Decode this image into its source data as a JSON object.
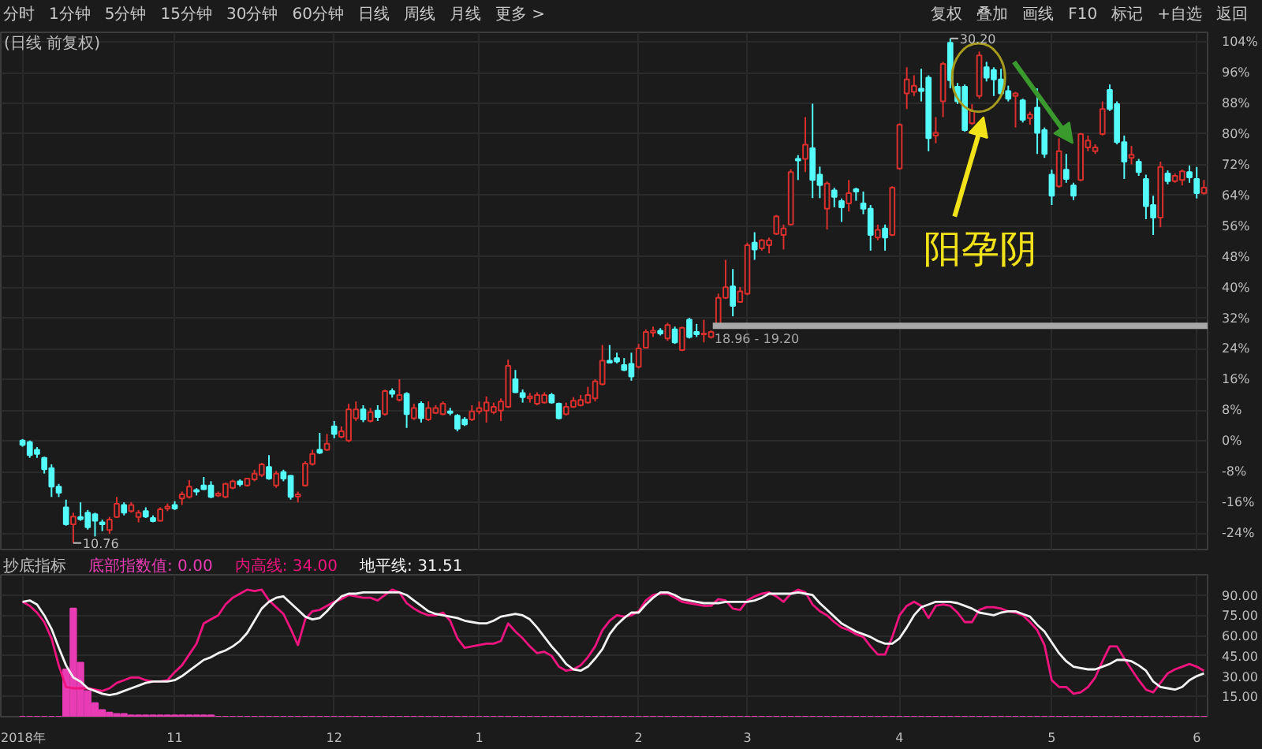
{
  "chart_data": [
    {
      "type": "candlestick",
      "title": "(日线 前复权)",
      "categories": [
        null,
        null,
        null,
        null,
        null,
        null,
        null,
        null,
        null,
        null,
        null,
        null,
        null,
        null,
        null,
        null,
        null,
        null,
        null,
        null,
        null,
        null,
        null,
        null,
        null,
        null,
        null,
        null,
        null,
        null,
        null,
        null,
        null,
        null,
        null,
        null,
        null,
        null,
        null,
        null,
        null,
        null,
        null,
        null,
        null,
        null,
        null,
        null,
        null,
        null,
        null,
        null,
        null,
        null,
        null,
        null,
        null,
        null,
        null,
        null,
        null,
        null,
        null,
        null,
        null,
        null,
        null,
        null,
        null,
        null,
        null,
        null,
        null,
        null,
        null,
        null,
        null,
        null,
        null,
        null,
        null,
        null,
        null,
        null,
        null,
        null,
        null,
        null,
        null,
        null,
        null,
        null,
        null,
        null,
        null,
        null,
        null,
        null,
        null,
        null,
        null,
        null,
        null,
        null,
        null,
        null,
        null,
        null,
        null,
        null,
        null,
        null,
        null,
        null,
        null,
        null,
        null,
        null,
        null,
        null,
        null,
        null,
        null,
        null,
        null,
        null,
        null,
        null,
        null,
        null,
        null,
        null,
        null,
        null,
        null,
        null,
        null,
        null,
        null,
        null,
        null,
        null,
        null,
        null,
        null,
        null,
        null,
        null,
        null,
        null,
        null,
        null,
        null,
        null,
        null,
        null,
        null,
        null,
        null,
        null,
        null,
        null,
        null,
        null
      ],
      "ohlc": [
        [
          0.1,
          0.5,
          -1.5,
          -1.0
        ],
        [
          -0.3,
          0.1,
          -4.4,
          -3.7
        ],
        [
          -2.3,
          -1.6,
          -4.4,
          -3.4
        ],
        [
          -4.4,
          -4.1,
          -8.5,
          -7.4
        ],
        [
          -7.1,
          -6.1,
          -14.6,
          -11.9
        ],
        [
          -11.9,
          -11.2,
          -14.6,
          -13.5
        ],
        [
          -17.3,
          -15.3,
          -22.1,
          -21.7
        ],
        [
          -21.7,
          -18.7,
          -26.6,
          -19.7
        ],
        [
          -19.8,
          -16.0,
          -20.8,
          -20.4
        ],
        [
          -18.7,
          -18.0,
          -23.1,
          -22.5
        ],
        [
          -19.1,
          -18.7,
          -24.9,
          -20.8
        ],
        [
          -21.2,
          -20.5,
          -23.5,
          -21.7
        ],
        [
          -23.2,
          -19.8,
          -24.2,
          -20.5
        ],
        [
          -19.8,
          -14.6,
          -20.1,
          -16.4
        ],
        [
          -16.7,
          -16.0,
          -19.4,
          -18.7
        ],
        [
          -18.3,
          -16.0,
          -18.7,
          -16.7
        ],
        [
          -19.8,
          -18.0,
          -21.2,
          -18.7
        ],
        [
          -18.3,
          -17.3,
          -20.1,
          -19.7
        ],
        [
          -20.1,
          -19.4,
          -21.2,
          -20.9
        ],
        [
          -20.8,
          -17.3,
          -21.0,
          -17.8
        ],
        [
          -17.6,
          -16.3,
          -18.3,
          -17.1
        ],
        [
          -16.7,
          -15.7,
          -18.0,
          -17.6
        ],
        [
          -15.0,
          -13.2,
          -16.7,
          -13.9
        ],
        [
          -14.6,
          -10.2,
          -15.0,
          -11.9
        ],
        [
          -12.8,
          -12.3,
          -14.2,
          -13.2
        ],
        [
          -11.6,
          -9.4,
          -12.8,
          -12.6
        ],
        [
          -11.6,
          -10.5,
          -14.9,
          -14.6
        ],
        [
          -14.2,
          -13.2,
          -14.6,
          -13.7
        ],
        [
          -14.6,
          -10.9,
          -14.9,
          -11.2
        ],
        [
          -12.2,
          -10.1,
          -12.6,
          -10.5
        ],
        [
          -10.5,
          -10.0,
          -11.9,
          -11.3
        ],
        [
          -11.6,
          -9.6,
          -11.9,
          -9.8
        ],
        [
          -10.0,
          -7.5,
          -10.5,
          -8.5
        ],
        [
          -8.9,
          -5.7,
          -9.4,
          -6.1
        ],
        [
          -6.8,
          -3.7,
          -10.1,
          -9.8
        ],
        [
          -11.6,
          -7.8,
          -12.2,
          -8.5
        ],
        [
          -8.1,
          -7.5,
          -10.5,
          -9.8
        ],
        [
          -9.1,
          -8.9,
          -15.3,
          -14.6
        ],
        [
          -14.5,
          -13.2,
          -16.0,
          -13.9
        ],
        [
          -11.6,
          -5.3,
          -11.9,
          -5.9
        ],
        [
          -6.0,
          -2.3,
          -6.4,
          -3.4
        ],
        [
          -2.3,
          2.1,
          -3.4,
          -3.1
        ],
        [
          -2.3,
          1.8,
          -2.6,
          -0.7
        ],
        [
          3.8,
          5.2,
          0.7,
          1.8
        ],
        [
          1.1,
          3.8,
          0.7,
          2.5
        ],
        [
          0.1,
          9.7,
          -0.3,
          8.2
        ],
        [
          5.9,
          10.3,
          5.2,
          8.2
        ],
        [
          8.2,
          9.3,
          4.9,
          5.6
        ],
        [
          5.2,
          8.6,
          4.8,
          7.5
        ],
        [
          7.9,
          9.3,
          5.2,
          6.2
        ],
        [
          7.0,
          13.4,
          6.6,
          13.0
        ],
        [
          13.0,
          13.7,
          11.3,
          12.3
        ],
        [
          10.7,
          16.1,
          10.3,
          12.0
        ],
        [
          12.3,
          12.7,
          3.4,
          7.0
        ],
        [
          5.9,
          9.7,
          5.5,
          8.6
        ],
        [
          9.7,
          10.3,
          4.8,
          5.9
        ],
        [
          5.6,
          10.3,
          5.2,
          8.6
        ],
        [
          7.3,
          9.3,
          7.0,
          8.6
        ],
        [
          7.0,
          10.3,
          6.7,
          9.7
        ],
        [
          7.7,
          8.6,
          6.7,
          7.3
        ],
        [
          6.6,
          7.0,
          2.5,
          3.2
        ],
        [
          5.6,
          6.2,
          3.9,
          4.3
        ],
        [
          5.6,
          9.3,
          5.2,
          7.7
        ],
        [
          7.7,
          10.3,
          7.0,
          8.6
        ],
        [
          7.9,
          11.6,
          4.8,
          10.0
        ],
        [
          7.5,
          10.0,
          7.0,
          8.9
        ],
        [
          7.9,
          11.1,
          5.2,
          10.3
        ],
        [
          8.9,
          21.2,
          8.6,
          19.6
        ],
        [
          16.1,
          18.5,
          12.5,
          12.7
        ],
        [
          12.5,
          13.4,
          10.0,
          11.4
        ],
        [
          11.1,
          12.5,
          10.0,
          11.6
        ],
        [
          9.7,
          12.7,
          9.3,
          12.0
        ],
        [
          10.0,
          12.7,
          9.7,
          12.0
        ],
        [
          12.0,
          12.5,
          9.7,
          10.0
        ],
        [
          9.7,
          10.0,
          5.6,
          5.9
        ],
        [
          7.0,
          10.0,
          6.6,
          8.9
        ],
        [
          8.9,
          11.4,
          8.6,
          10.5
        ],
        [
          9.3,
          12.0,
          9.0,
          10.7
        ],
        [
          10.0,
          14.1,
          9.7,
          12.0
        ],
        [
          11.1,
          16.1,
          10.3,
          15.5
        ],
        [
          14.8,
          25.0,
          14.5,
          20.9
        ],
        [
          20.9,
          25.0,
          20.2,
          20.4
        ],
        [
          21.6,
          23.0,
          20.2,
          20.7
        ],
        [
          19.8,
          21.6,
          18.2,
          18.5
        ],
        [
          20.1,
          23.0,
          15.7,
          16.8
        ],
        [
          19.3,
          25.3,
          18.9,
          24.1
        ],
        [
          24.3,
          29.1,
          24.1,
          28.4
        ],
        [
          28.2,
          29.8,
          27.1,
          28.7
        ],
        [
          28.7,
          29.4,
          27.5,
          28.0
        ],
        [
          26.7,
          30.8,
          26.1,
          30.2
        ],
        [
          29.1,
          29.8,
          25.3,
          25.7
        ],
        [
          23.7,
          29.8,
          23.4,
          29.5
        ],
        [
          31.6,
          32.1,
          26.7,
          27.1
        ],
        [
          28.4,
          30.5,
          27.1,
          27.8
        ],
        [
          27.8,
          31.6,
          25.7,
          28.0
        ],
        [
          27.1,
          28.8,
          26.7,
          28.4
        ],
        [
          30.5,
          38.4,
          30.2,
          37.3
        ],
        [
          37.3,
          47.2,
          37.0,
          40.1
        ],
        [
          40.3,
          44.8,
          32.5,
          35.2
        ],
        [
          36.2,
          40.1,
          36.0,
          39.0
        ],
        [
          38.4,
          51.7,
          38.0,
          51.0
        ],
        [
          51.7,
          54.4,
          47.2,
          49.9
        ],
        [
          50.2,
          52.6,
          49.6,
          52.3
        ],
        [
          51.0,
          53.0,
          48.9,
          52.3
        ],
        [
          54.0,
          58.9,
          53.7,
          58.5
        ],
        [
          53.7,
          56.4,
          49.9,
          55.4
        ],
        [
          56.4,
          70.8,
          56.2,
          70.1
        ],
        [
          73.5,
          74.5,
          68.0,
          73.1
        ],
        [
          73.5,
          84.4,
          70.1,
          77.2
        ],
        [
          76.3,
          87.9,
          63.3,
          68.0
        ],
        [
          69.4,
          71.5,
          63.3,
          66.7
        ],
        [
          60.5,
          67.6,
          55.1,
          67.1
        ],
        [
          65.3,
          66.0,
          60.9,
          63.6
        ],
        [
          62.5,
          63.2,
          57.1,
          60.9
        ],
        [
          61.9,
          68.0,
          59.8,
          64.6
        ],
        [
          65.6,
          66.0,
          62.6,
          65.0
        ],
        [
          61.9,
          65.0,
          59.1,
          60.5
        ],
        [
          60.5,
          61.5,
          49.6,
          53.7
        ],
        [
          53.0,
          56.4,
          52.3,
          55.0
        ],
        [
          55.4,
          56.4,
          49.6,
          53.0
        ],
        [
          53.7,
          66.4,
          53.4,
          66.0
        ],
        [
          71.0,
          82.8,
          70.7,
          82.4
        ],
        [
          90.6,
          97.4,
          86.5,
          94.2
        ],
        [
          91.0,
          95.3,
          89.9,
          92.6
        ],
        [
          91.8,
          97.0,
          88.5,
          91.2
        ],
        [
          94.7,
          95.3,
          75.5,
          78.9
        ],
        [
          79.6,
          84.4,
          77.6,
          80.3
        ],
        [
          88.5,
          98.8,
          84.4,
          98.3
        ],
        [
          103.8,
          104.9,
          91.9,
          94.0
        ],
        [
          92.3,
          93.3,
          87.8,
          88.5
        ],
        [
          92.3,
          92.9,
          80.6,
          81.0
        ],
        [
          82.8,
          87.8,
          82.4,
          86.0
        ],
        [
          89.9,
          101.5,
          89.2,
          100.5
        ],
        [
          97.4,
          98.8,
          93.7,
          94.7
        ],
        [
          96.7,
          97.4,
          89.9,
          94.2
        ],
        [
          94.2,
          97.0,
          89.9,
          90.6
        ],
        [
          91.2,
          92.6,
          88.5,
          89.2
        ],
        [
          89.9,
          91.0,
          81.7,
          90.6
        ],
        [
          88.8,
          89.2,
          83.0,
          83.7
        ],
        [
          84.1,
          85.8,
          82.4,
          85.1
        ],
        [
          86.9,
          91.9,
          74.8,
          80.3
        ],
        [
          81.0,
          81.7,
          73.8,
          74.8
        ],
        [
          69.4,
          70.7,
          61.5,
          63.9
        ],
        [
          66.4,
          78.9,
          66.0,
          75.5
        ],
        [
          70.7,
          74.8,
          67.3,
          68.3
        ],
        [
          66.6,
          67.3,
          62.8,
          63.9
        ],
        [
          68.0,
          80.3,
          67.7,
          80.0
        ],
        [
          76.5,
          79.6,
          75.5,
          78.3
        ],
        [
          75.5,
          77.3,
          74.8,
          76.5
        ],
        [
          80.0,
          88.5,
          79.6,
          86.5
        ],
        [
          91.5,
          92.9,
          86.0,
          86.5
        ],
        [
          87.8,
          88.5,
          77.3,
          77.9
        ],
        [
          77.9,
          79.6,
          68.3,
          72.8
        ],
        [
          73.8,
          76.9,
          72.1,
          74.6
        ],
        [
          72.8,
          73.5,
          69.1,
          70.1
        ],
        [
          68.3,
          69.4,
          57.8,
          61.2
        ],
        [
          61.5,
          63.9,
          53.7,
          58.2
        ],
        [
          58.2,
          72.8,
          55.7,
          71.4
        ],
        [
          69.7,
          70.5,
          66.9,
          67.7
        ],
        [
          67.7,
          69.7,
          67.3,
          69.1
        ],
        [
          68.0,
          70.7,
          66.6,
          70.3
        ],
        [
          70.1,
          71.8,
          67.3,
          68.7
        ],
        [
          68.3,
          71.4,
          63.2,
          64.6
        ],
        [
          64.6,
          68.0,
          64.2,
          66.0
        ]
      ],
      "colors": [
        "#54fcfc",
        "#54fcfc",
        "#54fcfc",
        "#54fcfc",
        "#54fcfc",
        "#54fcfc",
        "#54fcfc",
        "#d9302e",
        "#54fcfc",
        "#54fcfc",
        "#54fcfc",
        "#54fcfc",
        "#d9302e",
        "#d9302e",
        "#54fcfc",
        "#d9302e",
        "#d9302e",
        "#54fcfc",
        "#54fcfc",
        "#d9302e",
        "#d9302e",
        "#54fcfc",
        "#d9302e",
        "#d9302e",
        "#54fcfc",
        "#54fcfc",
        "#54fcfc",
        "#d9302e",
        "#d9302e",
        "#d9302e",
        "#54fcfc",
        "#d9302e",
        "#d9302e",
        "#d9302e",
        "#54fcfc",
        "#d9302e",
        "#54fcfc",
        "#54fcfc",
        "#d9302e",
        "#d9302e",
        "#d9302e",
        "#54fcfc",
        "#d9302e",
        "#54fcfc",
        "#d9302e",
        "#d9302e",
        "#d9302e",
        "#54fcfc",
        "#d9302e",
        "#54fcfc",
        "#d9302e",
        "#54fcfc",
        "#d9302e",
        "#54fcfc",
        "#d9302e",
        "#54fcfc",
        "#d9302e",
        "#d9302e",
        "#d9302e",
        "#54fcfc",
        "#54fcfc",
        "#54fcfc",
        "#d9302e",
        "#d9302e",
        "#d9302e",
        "#d9302e",
        "#d9302e",
        "#d9302e",
        "#54fcfc",
        "#54fcfc",
        "#d9302e",
        "#d9302e",
        "#d9302e",
        "#54fcfc",
        "#54fcfc",
        "#d9302e",
        "#d9302e",
        "#d9302e",
        "#d9302e",
        "#d9302e",
        "#d9302e",
        "#54fcfc",
        "#54fcfc",
        "#54fcfc",
        "#54fcfc",
        "#d9302e",
        "#d9302e",
        "#d9302e",
        "#54fcfc",
        "#d9302e",
        "#54fcfc",
        "#d9302e",
        "#54fcfc",
        "#54fcfc",
        "#d9302e",
        "#d9302e",
        "#d9302e",
        "#d9302e",
        "#54fcfc",
        "#d9302e",
        "#d9302e",
        "#54fcfc",
        "#d9302e",
        "#d9302e",
        "#d9302e",
        "#d9302e",
        "#d9302e",
        "#54fcfc",
        "#d9302e",
        "#54fcfc",
        "#54fcfc",
        "#d9302e",
        "#54fcfc",
        "#54fcfc",
        "#d9302e",
        "#54fcfc",
        "#54fcfc",
        "#54fcfc",
        "#d9302e",
        "#54fcfc",
        "#d9302e",
        "#d9302e",
        "#d9302e",
        "#d9302e",
        "#54fcfc",
        "#54fcfc",
        "#d9302e",
        "#d9302e",
        "#54fcfc",
        "#54fcfc",
        "#54fcfc",
        "#d9302e",
        "#d9302e",
        "#54fcfc",
        "#54fcfc",
        "#54fcfc",
        "#54fcfc",
        "#d9302e",
        "#54fcfc",
        "#d9302e",
        "#54fcfc",
        "#54fcfc",
        "#54fcfc",
        "#d9302e",
        "#54fcfc",
        "#54fcfc",
        "#d9302e",
        "#d9302e",
        "#d9302e",
        "#d9302e",
        "#54fcfc",
        "#54fcfc",
        "#54fcfc",
        "#d9302e",
        "#54fcfc",
        "#54fcfc",
        "#54fcfc",
        "#d9302e",
        "#54fcfc",
        "#d9302e",
        "#d9302e",
        "#54fcfc",
        "#54fcfc",
        "#d9302e"
      ],
      "ylim": [
        -28.3,
        106.5
      ],
      "yticks": [
        {
          "value": 104,
          "label": "104%"
        },
        {
          "value": 96,
          "label": "96%"
        },
        {
          "value": 88,
          "label": "88%"
        },
        {
          "value": 80,
          "label": "80%"
        },
        {
          "value": 72,
          "label": "72%"
        },
        {
          "value": 64,
          "label": "64%"
        },
        {
          "value": 56,
          "label": "56%"
        },
        {
          "value": 48,
          "label": "48%"
        },
        {
          "value": 40,
          "label": "40%"
        },
        {
          "value": 32,
          "label": "32%"
        },
        {
          "value": 24,
          "label": "24%"
        },
        {
          "value": 16,
          "label": "16%"
        },
        {
          "value": 8,
          "label": "8%"
        },
        {
          "value": 0,
          "label": "0%"
        },
        {
          "value": -8,
          "label": "-8%"
        },
        {
          "value": -16,
          "label": "-16%"
        },
        {
          "value": -24,
          "label": "-24%"
        }
      ],
      "grid": true,
      "tick_labels": "y",
      "ref_lines": [
        {
          "axis": "y",
          "value": 30.0,
          "color": "#a8a8a8"
        }
      ],
      "annotations": [
        "阳孕阴",
        "30.20",
        "10.76",
        "18.96 - 19.20",
        "分时",
        "1分钟",
        "5分钟",
        "15分钟",
        "30分钟",
        "60分钟",
        "日线",
        "周线",
        "月线",
        "更多 >",
        "复权",
        "叠加",
        "画线",
        "F10",
        "标记",
        "+自选",
        "返回"
      ]
    },
    {
      "type": "line",
      "title": "抄底指标",
      "categories": [
        "2018年",
        null,
        null,
        null,
        null,
        null,
        null,
        null,
        null,
        null,
        null,
        null,
        null,
        null,
        null,
        null,
        null,
        null,
        null,
        null,
        null,
        "11",
        null,
        null,
        null,
        null,
        null,
        null,
        null,
        null,
        null,
        null,
        null,
        null,
        null,
        null,
        null,
        null,
        null,
        null,
        null,
        null,
        null,
        "12",
        null,
        null,
        null,
        null,
        null,
        null,
        null,
        null,
        null,
        null,
        null,
        null,
        null,
        null,
        null,
        null,
        null,
        null,
        null,
        "1",
        null,
        null,
        null,
        null,
        null,
        null,
        null,
        null,
        null,
        null,
        null,
        null,
        null,
        null,
        null,
        null,
        null,
        null,
        null,
        null,
        null,
        "2",
        null,
        null,
        null,
        null,
        null,
        null,
        null,
        null,
        null,
        null,
        null,
        null,
        null,
        null,
        "3",
        null,
        null,
        null,
        null,
        null,
        null,
        null,
        null,
        null,
        null,
        null,
        null,
        null,
        null,
        null,
        null,
        null,
        null,
        null,
        null,
        "4",
        null,
        null,
        null,
        null,
        null,
        null,
        null,
        null,
        null,
        null,
        null,
        null,
        null,
        null,
        null,
        null,
        null,
        null,
        null,
        null,
        "5",
        null,
        null,
        null,
        null,
        null,
        null,
        null,
        null,
        null,
        null,
        null,
        null,
        null,
        null,
        null,
        null,
        null,
        null,
        null,
        "6",
        null
      ],
      "series": [
        {
          "name": "底部指数值: 0.00",
          "type": "bar",
          "color": "#e83cb4",
          "values": [
            0,
            0,
            0,
            0,
            0,
            0,
            35,
            80,
            40,
            19,
            10,
            5,
            3,
            2,
            2,
            1,
            1,
            1,
            1,
            1,
            1,
            1,
            1,
            1,
            1,
            1,
            1,
            0,
            0,
            0,
            0,
            0,
            0,
            0,
            0,
            0,
            0,
            0,
            0,
            0,
            0,
            0,
            0,
            0,
            0,
            0,
            0,
            0,
            0,
            0,
            0,
            0,
            0,
            0,
            0,
            0,
            0,
            0,
            0,
            0,
            0,
            0,
            0,
            0,
            0,
            0,
            0,
            0,
            0,
            0,
            0,
            0,
            0,
            0,
            0,
            0,
            0,
            0,
            0,
            0,
            0,
            0,
            0,
            0,
            0,
            0,
            0,
            0,
            0,
            0,
            0,
            0,
            0,
            0,
            0,
            0,
            0,
            0,
            0,
            0,
            0,
            0,
            0,
            0,
            0,
            0,
            0,
            0,
            0,
            0,
            0,
            0,
            0,
            0,
            0,
            0,
            0,
            0,
            0,
            0,
            0,
            0,
            0,
            0,
            0,
            0,
            0,
            0,
            0,
            0,
            0,
            0,
            0,
            0,
            0,
            0,
            0,
            0,
            0,
            0,
            0,
            0,
            0,
            0,
            0,
            0,
            0,
            0,
            0,
            0,
            0,
            0,
            0,
            0,
            0,
            0,
            0,
            0,
            0,
            0,
            0,
            0,
            0,
            0
          ]
        },
        {
          "name": "内高线: 34.00",
          "color": "#f0147e",
          "values": [
            85,
            82,
            77,
            70,
            58,
            38,
            22,
            21,
            21,
            21,
            20,
            19,
            21,
            25,
            27,
            29,
            29,
            27,
            26,
            26,
            27,
            33,
            38,
            46,
            54,
            69,
            72,
            75,
            83,
            88,
            91,
            94,
            93,
            94,
            86,
            81,
            76,
            65,
            53,
            72,
            78,
            79,
            82,
            85,
            87,
            90,
            89,
            88,
            88,
            86,
            90,
            94,
            92,
            84,
            80,
            77,
            75,
            75,
            77,
            71,
            58,
            51,
            52,
            53,
            54,
            54,
            56,
            69,
            63,
            58,
            52,
            47,
            48,
            45,
            37,
            34,
            35,
            38,
            44,
            52,
            64,
            71,
            75,
            74,
            75,
            78,
            86,
            90,
            91,
            91,
            88,
            85,
            84,
            83,
            82,
            82,
            87,
            86,
            80,
            79,
            86,
            89,
            91,
            92,
            89,
            85,
            91,
            94,
            92,
            83,
            78,
            75,
            70,
            66,
            64,
            61,
            59,
            52,
            46,
            46,
            59,
            75,
            82,
            85,
            82,
            73,
            82,
            83,
            82,
            77,
            70,
            70,
            79,
            81,
            81,
            80,
            78,
            77,
            75,
            70,
            64,
            53,
            27,
            22,
            22,
            17,
            18,
            22,
            29,
            41,
            52,
            52,
            43,
            35,
            27,
            20,
            18,
            25,
            32,
            35,
            37,
            39,
            37,
            34
          ]
        },
        {
          "name": "地平线: 31.51",
          "color": "#f2f2f2",
          "values": [
            85,
            86,
            83,
            75,
            65,
            51,
            38,
            29,
            26,
            21,
            19,
            17,
            16,
            17,
            19,
            21,
            23,
            25,
            26,
            26,
            26,
            27,
            30,
            34,
            38,
            42,
            44,
            47,
            49,
            52,
            56,
            62,
            71,
            80,
            85,
            88,
            89,
            84,
            79,
            74,
            72,
            73,
            78,
            84,
            89,
            91,
            91,
            92,
            92,
            92,
            92,
            92,
            92,
            90,
            86,
            82,
            78,
            76,
            75,
            74,
            73,
            71,
            70,
            69,
            69,
            71,
            74,
            75,
            76,
            75,
            72,
            66,
            59,
            52,
            46,
            39,
            35,
            34,
            37,
            43,
            50,
            61,
            68,
            73,
            77,
            77,
            83,
            88,
            92,
            92,
            90,
            87,
            86,
            85,
            84,
            84,
            84,
            85,
            85,
            85,
            85,
            86,
            88,
            91,
            91,
            91,
            91,
            92,
            91,
            90,
            84,
            79,
            74,
            69,
            66,
            63,
            61,
            59,
            56,
            54,
            54,
            58,
            66,
            75,
            81,
            83,
            85,
            85,
            85,
            84,
            82,
            80,
            77,
            76,
            75,
            77,
            78,
            78,
            76,
            74,
            68,
            63,
            55,
            47,
            41,
            37,
            36,
            35,
            35,
            37,
            39,
            42,
            42,
            41,
            38,
            34,
            26,
            22,
            21,
            20,
            22,
            27,
            30,
            32
          ]
        }
      ],
      "ylim": [
        0,
        105
      ],
      "yticks": [
        {
          "value": 90,
          "label": "90.00"
        },
        {
          "value": 75,
          "label": "75.00"
        },
        {
          "value": 60,
          "label": "60.00"
        },
        {
          "value": 45,
          "label": "45.00"
        },
        {
          "value": 30,
          "label": "30.00"
        },
        {
          "value": 15,
          "label": "15.00"
        }
      ],
      "grid": true,
      "legend": "top left"
    }
  ]
}
